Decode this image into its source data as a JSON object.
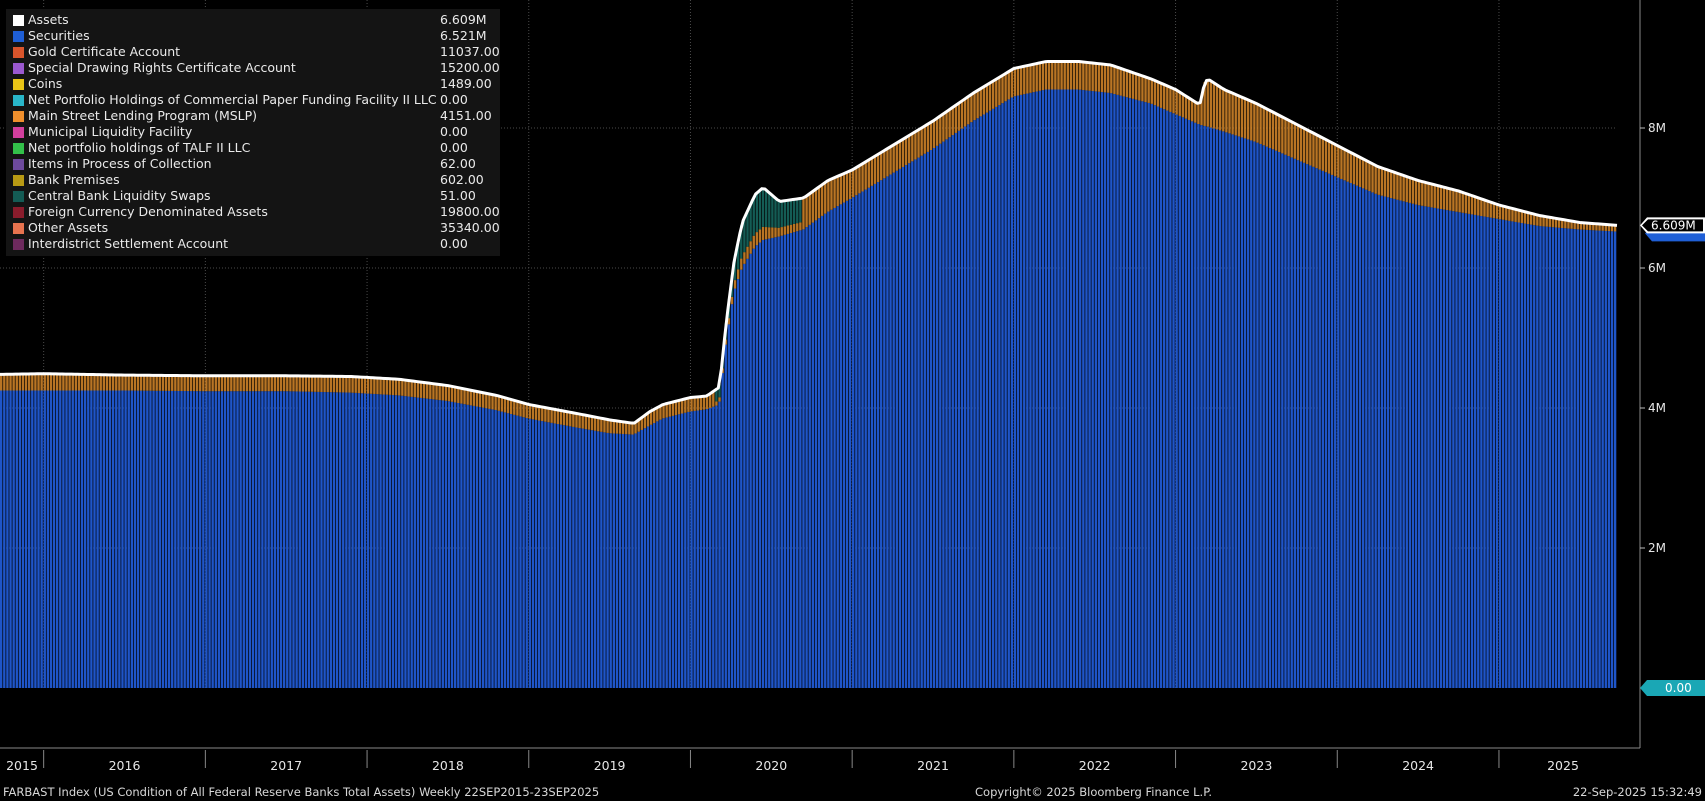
{
  "chart_data": {
    "type": "bar",
    "title": "FARBAST Index (US Condition of All Federal Reserve Banks Total Assets)  Weekly 22SEP2015-23SEP2025",
    "ylim": [
      0,
      9800000
    ],
    "yticks": [
      {
        "value": 2000000,
        "label": "2M"
      },
      {
        "value": 4000000,
        "label": "4M"
      },
      {
        "value": 6000000,
        "label": "6M"
      },
      {
        "value": 8000000,
        "label": "8M"
      }
    ],
    "zero_label": "0.00",
    "last_value_label": "6.609M",
    "x_range": [
      2015.73,
      2025.73
    ],
    "x_labels": [
      "2015",
      "2016",
      "2017",
      "2018",
      "2019",
      "2020",
      "2021",
      "2022",
      "2023",
      "2024",
      "2025"
    ],
    "grid": true,
    "legend_position": "top-left",
    "series_assets": {
      "name": "Assets",
      "x": [
        2015.73,
        2016.0,
        2016.5,
        2017.0,
        2017.5,
        2017.9,
        2018.2,
        2018.5,
        2018.8,
        2019.0,
        2019.3,
        2019.5,
        2019.65,
        2019.75,
        2019.83,
        2020.0,
        2020.1,
        2020.18,
        2020.22,
        2020.27,
        2020.32,
        2020.4,
        2020.45,
        2020.55,
        2020.7,
        2020.85,
        2021.0,
        2021.25,
        2021.5,
        2021.75,
        2022.0,
        2022.2,
        2022.4,
        2022.6,
        2022.85,
        2023.0,
        2023.15,
        2023.18,
        2023.2,
        2023.3,
        2023.5,
        2023.75,
        2024.0,
        2024.25,
        2024.5,
        2024.75,
        2025.0,
        2025.25,
        2025.5,
        2025.73
      ],
      "y": [
        4480000,
        4490000,
        4470000,
        4460000,
        4460000,
        4450000,
        4410000,
        4320000,
        4180000,
        4050000,
        3920000,
        3830000,
        3780000,
        3950000,
        4050000,
        4150000,
        4170000,
        4300000,
        5200000,
        6100000,
        6650000,
        7050000,
        7150000,
        6950000,
        7000000,
        7250000,
        7400000,
        7750000,
        8100000,
        8500000,
        8850000,
        8950000,
        8950000,
        8900000,
        8700000,
        8550000,
        8330000,
        8650000,
        8700000,
        8550000,
        8350000,
        8050000,
        7750000,
        7450000,
        7250000,
        7100000,
        6900000,
        6750000,
        6650000,
        6609000
      ]
    },
    "series_securities": {
      "name": "Securities",
      "x": [
        2015.73,
        2016.0,
        2016.5,
        2017.0,
        2017.5,
        2017.9,
        2018.2,
        2018.5,
        2018.8,
        2019.0,
        2019.3,
        2019.5,
        2019.65,
        2019.75,
        2019.83,
        2020.0,
        2020.1,
        2020.18,
        2020.22,
        2020.27,
        2020.32,
        2020.4,
        2020.45,
        2020.55,
        2020.7,
        2020.85,
        2021.0,
        2021.25,
        2021.5,
        2021.75,
        2022.0,
        2022.2,
        2022.4,
        2022.6,
        2022.85,
        2023.0,
        2023.15,
        2023.18,
        2023.2,
        2023.3,
        2023.5,
        2023.75,
        2024.0,
        2024.25,
        2024.5,
        2024.75,
        2025.0,
        2025.25,
        2025.5,
        2025.73
      ],
      "y": [
        4250000,
        4250000,
        4250000,
        4240000,
        4240000,
        4220000,
        4180000,
        4100000,
        3970000,
        3850000,
        3720000,
        3640000,
        3620000,
        3750000,
        3850000,
        3950000,
        3980000,
        4050000,
        4900000,
        5650000,
        6000000,
        6300000,
        6400000,
        6450000,
        6550000,
        6800000,
        7000000,
        7350000,
        7700000,
        8100000,
        8450000,
        8550000,
        8550000,
        8500000,
        8350000,
        8200000,
        8050000,
        8030000,
        8020000,
        7950000,
        7800000,
        7550000,
        7300000,
        7050000,
        6900000,
        6800000,
        6700000,
        6600000,
        6550000,
        6521000
      ]
    },
    "legend": [
      {
        "name": "Assets",
        "value": "6.609M",
        "color": "#ffffff"
      },
      {
        "name": "Securities",
        "value": "6.521M",
        "color": "#1f5fd6"
      },
      {
        "name": "Gold Certificate Account",
        "value": "11037.00",
        "color": "#d9552c"
      },
      {
        "name": "Special Drawing Rights Certificate Account",
        "value": "15200.00",
        "color": "#9b59d0"
      },
      {
        "name": "Coins",
        "value": "1489.00",
        "color": "#e8c417"
      },
      {
        "name": "Net Portfolio Holdings of Commercial Paper Funding Facility II LLC",
        "value": "0.00",
        "color": "#29b6c9"
      },
      {
        "name": "Main Street Lending Program (MSLP)",
        "value": "4151.00",
        "color": "#ef8f2d"
      },
      {
        "name": "Municipal Liquidity Facility",
        "value": "0.00",
        "color": "#d23f9e"
      },
      {
        "name": "Net portfolio holdings of TALF II LLC",
        "value": "0.00",
        "color": "#33c04a"
      },
      {
        "name": "Items in Process of Collection",
        "value": "62.00",
        "color": "#6e4a9e"
      },
      {
        "name": "Bank Premises",
        "value": "602.00",
        "color": "#b89a14"
      },
      {
        "name": "Central Bank Liquidity Swaps",
        "value": "51.00",
        "color": "#145c55"
      },
      {
        "name": "Foreign Currency Denominated Assets",
        "value": "19800.00",
        "color": "#8a1c2c"
      },
      {
        "name": "Other Assets",
        "value": "35340.00",
        "color": "#e7734f"
      },
      {
        "name": "Interdistrict Settlement Account",
        "value": "0.00",
        "color": "#6e2a5e"
      }
    ],
    "colors": {
      "background": "#000000",
      "bars": "#1f55c8",
      "bar_gap": "#0d2a6e",
      "assets_line": "#ffffff",
      "swaps": "#145c55",
      "other": "#d98a2a",
      "tag_zero": "#1aa7b5",
      "tag_last": "#1f5fd6"
    }
  },
  "footer": {
    "left": "FARBAST Index (US Condition of All Federal Reserve Banks Total Assets)  Weekly 22SEP2015-23SEP2025",
    "center": "Copyright© 2025 Bloomberg Finance L.P.",
    "right": "22-Sep-2025 15:32:49"
  }
}
